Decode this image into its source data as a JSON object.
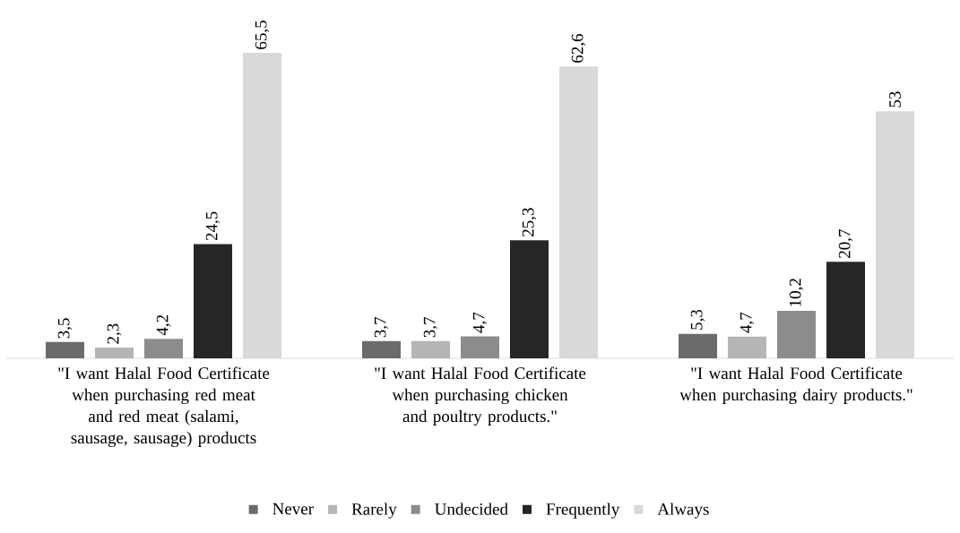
{
  "chart_data": {
    "type": "bar",
    "categories": [
      "\"I want Halal Food Certificate when purchasing red meat and red meat (salami, sausage, sausage) products",
      "\"I want Halal Food Certificate when purchasing chicken and poultry products.\"",
      "\"I want Halal Food Certificate when purchasing dairy products.\""
    ],
    "series": [
      {
        "name": "Never",
        "color": "#6b6b6b",
        "values": [
          3.5,
          3.7,
          5.3
        ],
        "value_labels": [
          "3,5",
          "3,7",
          "5,3"
        ]
      },
      {
        "name": "Rarely",
        "color": "#b5b5b5",
        "values": [
          2.3,
          3.7,
          4.7
        ],
        "value_labels": [
          "2,3",
          "3,7",
          "4,7"
        ]
      },
      {
        "name": "Undecided",
        "color": "#8c8c8c",
        "values": [
          4.2,
          4.7,
          10.2
        ],
        "value_labels": [
          "4,2",
          "4,7",
          "10,2"
        ]
      },
      {
        "name": "Frequently",
        "color": "#262626",
        "values": [
          24.5,
          25.3,
          20.7
        ],
        "value_labels": [
          "24,5",
          "25,3",
          "20,7"
        ]
      },
      {
        "name": "Always",
        "color": "#d9d9d9",
        "values": [
          65.5,
          62.6,
          53
        ],
        "value_labels": [
          "65,5",
          "62,6",
          "53"
        ]
      }
    ],
    "legend": "bottom"
  }
}
